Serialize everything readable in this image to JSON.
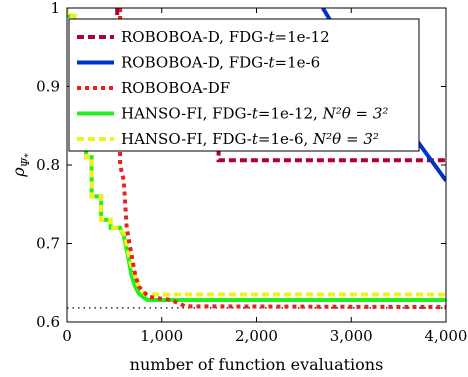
{
  "chart_data": {
    "type": "line",
    "xlabel": "number of function evaluations",
    "ylabel": "ρΨ*",
    "xlim": [
      0,
      4000
    ],
    "ylim": [
      0.6,
      1.0
    ],
    "x_ticks": [
      0,
      1000,
      2000,
      3000,
      4000
    ],
    "x_tick_labels": [
      "0",
      "1,000",
      "2,000",
      "3,000",
      "4,000"
    ],
    "y_ticks": [
      0.6,
      0.7,
      0.8,
      0.9,
      1.0
    ],
    "y_tick_labels": [
      "0.6",
      "0.7",
      "0.8",
      "0.9",
      "1"
    ],
    "grid": false,
    "legend_position": "top-right",
    "reference_line": {
      "y": 0.618,
      "style": "dotted",
      "color": "#000000"
    },
    "series": [
      {
        "name": "ROBOBOA-D, FDG-t=1e-12",
        "color": "#b0003a",
        "style": "dashed",
        "points": [
          [
            530,
            1.0
          ],
          [
            530,
            0.96
          ],
          [
            560,
            0.96
          ],
          [
            560,
            0.92
          ],
          [
            1600,
            0.92
          ],
          [
            1600,
            0.806
          ],
          [
            4000,
            0.806
          ]
        ]
      },
      {
        "name": "ROBOBOA-D, FDG-t=1e-6",
        "color": "#0033cc",
        "style": "solid",
        "points": [
          [
            2700,
            1.0
          ],
          [
            3050,
            0.93
          ],
          [
            3400,
            0.87
          ],
          [
            3700,
            0.83
          ],
          [
            4000,
            0.78
          ]
        ]
      },
      {
        "name": "ROBOBOA-DF",
        "color": "#e8201e",
        "style": "dotted",
        "points": [
          [
            560,
            1.0
          ],
          [
            560,
            0.8
          ],
          [
            600,
            0.78
          ],
          [
            630,
            0.72
          ],
          [
            660,
            0.7
          ],
          [
            720,
            0.66
          ],
          [
            760,
            0.645
          ],
          [
            860,
            0.632
          ],
          [
            1100,
            0.628
          ],
          [
            1250,
            0.62
          ],
          [
            4000,
            0.619
          ]
        ]
      },
      {
        "name": "HANSO-FI, FDG-t=1e-12, N_θ²=3²",
        "color": "#22ee22",
        "style": "solid",
        "points": [
          [
            0,
            1.0
          ],
          [
            0,
            0.99
          ],
          [
            80,
            0.99
          ],
          [
            80,
            0.95
          ],
          [
            140,
            0.95
          ],
          [
            140,
            0.9
          ],
          [
            200,
            0.9
          ],
          [
            200,
            0.81
          ],
          [
            260,
            0.81
          ],
          [
            260,
            0.76
          ],
          [
            360,
            0.76
          ],
          [
            360,
            0.73
          ],
          [
            460,
            0.73
          ],
          [
            460,
            0.72
          ],
          [
            560,
            0.72
          ],
          [
            600,
            0.71
          ],
          [
            650,
            0.68
          ],
          [
            680,
            0.66
          ],
          [
            720,
            0.645
          ],
          [
            760,
            0.636
          ],
          [
            800,
            0.632
          ],
          [
            850,
            0.628
          ],
          [
            4000,
            0.628
          ]
        ]
      },
      {
        "name": "HANSO-FI, FDG-t=1e-6, N_θ²=3²",
        "color": "#f2f21a",
        "style": "dashed",
        "points": [
          [
            0,
            1.0
          ],
          [
            0,
            0.99
          ],
          [
            80,
            0.99
          ],
          [
            80,
            0.95
          ],
          [
            140,
            0.95
          ],
          [
            140,
            0.9
          ],
          [
            200,
            0.9
          ],
          [
            200,
            0.81
          ],
          [
            260,
            0.81
          ],
          [
            260,
            0.76
          ],
          [
            360,
            0.76
          ],
          [
            360,
            0.73
          ],
          [
            460,
            0.73
          ],
          [
            460,
            0.72
          ],
          [
            560,
            0.72
          ],
          [
            610,
            0.71
          ],
          [
            660,
            0.68
          ],
          [
            700,
            0.665
          ],
          [
            740,
            0.65
          ],
          [
            780,
            0.64
          ],
          [
            830,
            0.635
          ],
          [
            4000,
            0.635
          ]
        ]
      }
    ]
  },
  "legend": [
    {
      "prefix": "ROBOBOA-D, FDG-",
      "italic": "t",
      "suffix": "=1e-12",
      "tail": ""
    },
    {
      "prefix": "ROBOBOA-D, FDG-",
      "italic": "t",
      "suffix": "=1e-6",
      "tail": ""
    },
    {
      "prefix": "ROBOBOA-DF",
      "italic": "",
      "suffix": "",
      "tail": ""
    },
    {
      "prefix": "HANSO-FI, FDG-",
      "italic": "t",
      "suffix": "=1e-12, ",
      "tail": "N²θ = 3²"
    },
    {
      "prefix": "HANSO-FI, FDG-",
      "italic": "t",
      "suffix": "=1e-6, ",
      "tail": "N²θ = 3²"
    }
  ]
}
